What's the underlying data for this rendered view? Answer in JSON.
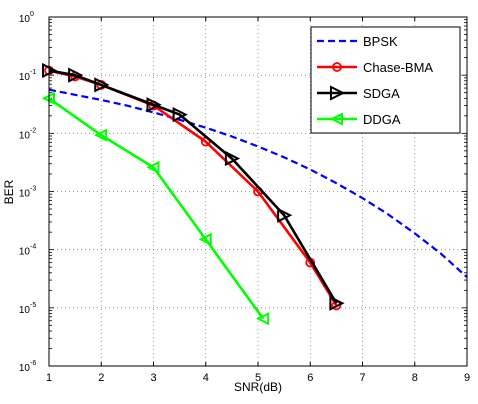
{
  "chart_data": {
    "type": "line",
    "xlabel": "SNR(dB)",
    "ylabel": "BER",
    "xlim": [
      1,
      9
    ],
    "ylim_exponent": [
      -6,
      0
    ],
    "yscale": "log",
    "xticks": [
      "1",
      "2",
      "3",
      "4",
      "5",
      "6",
      "7",
      "8",
      "9"
    ],
    "yticks": [
      {
        "base": "10",
        "exp": "0"
      },
      {
        "base": "10",
        "exp": "-1"
      },
      {
        "base": "10",
        "exp": "-2"
      },
      {
        "base": "10",
        "exp": "-3"
      },
      {
        "base": "10",
        "exp": "-4"
      },
      {
        "base": "10",
        "exp": "-5"
      },
      {
        "base": "10",
        "exp": "-6"
      }
    ],
    "grid": true,
    "legend_position": "top-right",
    "series": [
      {
        "name": "BPSK",
        "color": "#0000ff",
        "style": "dashed",
        "marker": "none",
        "x": [
          1,
          1.5,
          2,
          2.5,
          3,
          3.5,
          4,
          4.5,
          5,
          5.5,
          6,
          6.5,
          7,
          7.5,
          8,
          8.5,
          9
        ],
        "y": [
          0.0563,
          0.046,
          0.0375,
          0.0299,
          0.0229,
          0.0171,
          0.0125,
          0.00883,
          0.00595,
          0.00387,
          0.00239,
          0.00139,
          0.00077,
          0.000399,
          0.000191,
          8.55e-05,
          3.36e-05
        ]
      },
      {
        "name": "Chase-BMA",
        "color": "#ff0000",
        "style": "solid",
        "marker": "circle",
        "x": [
          1,
          1.5,
          2,
          3,
          4,
          5,
          6,
          6.5
        ],
        "y": [
          0.12,
          0.095,
          0.068,
          0.03,
          0.0072,
          0.001,
          6e-05,
          1.1e-05
        ]
      },
      {
        "name": "SDGA",
        "color": "#000000",
        "style": "solid",
        "marker": "triangle-right",
        "x": [
          1,
          1.5,
          2,
          3,
          3.5,
          4.5,
          5.5,
          6.5
        ],
        "y": [
          0.12,
          0.1,
          0.068,
          0.031,
          0.021,
          0.0037,
          0.00039,
          1.2e-05
        ]
      },
      {
        "name": "DDGA",
        "color": "#00ff00",
        "style": "solid",
        "marker": "triangle-left",
        "x": [
          1,
          2,
          3,
          4,
          5.1
        ],
        "y": [
          0.04,
          0.0093,
          0.0026,
          0.00015,
          6.5e-06
        ]
      }
    ]
  }
}
